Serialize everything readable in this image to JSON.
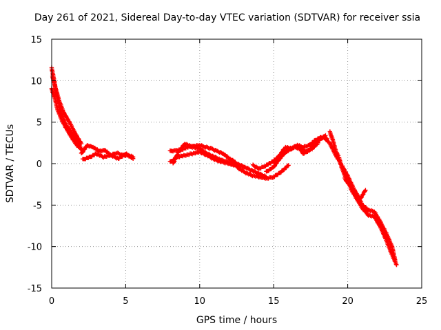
{
  "chart_data": {
    "type": "scatter",
    "title": "Day 261 of 2021, Sidereal Day-to-day VTEC variation (SDTVAR) for receiver ssia",
    "xlabel": "GPS time / hours",
    "ylabel": "SDTVAR / TECUs",
    "xlim": [
      0,
      25
    ],
    "ylim": [
      -15,
      15
    ],
    "xticks": [
      "0",
      "5",
      "10",
      "15",
      "20",
      "25"
    ],
    "yticks": [
      "-15",
      "-10",
      "-5",
      "0",
      "5",
      "10",
      "15"
    ],
    "grid": true,
    "marker": "+",
    "color": "#ff0000",
    "series": [
      {
        "name": "SDTVAR",
        "tracks": [
          {
            "x": [
              0.0,
              0.15,
              0.3,
              0.5,
              0.7,
              1.0,
              1.4,
              1.8,
              2.1
            ],
            "y": [
              11.5,
              10.2,
              8.6,
              7.0,
              5.8,
              4.6,
              3.6,
              2.4,
              1.4
            ]
          },
          {
            "x": [
              0.0,
              0.2,
              0.4,
              0.7,
              1.0,
              1.4,
              1.8
            ],
            "y": [
              9.0,
              8.0,
              6.5,
              5.2,
              4.2,
              3.0,
              2.0
            ]
          },
          {
            "x": [
              0.05,
              0.25,
              0.5,
              0.8,
              1.2,
              1.6,
              2.0
            ],
            "y": [
              10.5,
              9.2,
              7.6,
              6.2,
              5.0,
              3.6,
              2.4
            ]
          },
          {
            "x": [
              2.0,
              2.4,
              2.8,
              3.2,
              3.6,
              4.0,
              4.4,
              4.8,
              5.2,
              5.5
            ],
            "y": [
              1.2,
              2.2,
              2.0,
              1.5,
              1.6,
              1.0,
              1.3,
              1.0,
              1.0,
              0.8
            ]
          },
          {
            "x": [
              2.1,
              2.6,
              3.0,
              3.5,
              4.0,
              4.5,
              5.0,
              5.5
            ],
            "y": [
              0.5,
              0.8,
              1.2,
              0.8,
              1.0,
              0.6,
              1.2,
              0.6
            ]
          },
          {
            "x": [
              8.0,
              8.4,
              8.8,
              9.2,
              9.6,
              10.0,
              10.4,
              10.8,
              11.2,
              11.6,
              12.0,
              12.4
            ],
            "y": [
              1.5,
              1.6,
              1.7,
              2.0,
              2.1,
              2.2,
              2.0,
              1.8,
              1.5,
              1.2,
              0.6,
              0.2
            ]
          },
          {
            "x": [
              8.0,
              8.5,
              9.0,
              9.5,
              10.0,
              10.5,
              11.0,
              11.5,
              12.0,
              12.5,
              13.0
            ],
            "y": [
              0.2,
              0.8,
              1.0,
              1.2,
              1.4,
              1.0,
              0.5,
              0.2,
              0.0,
              -0.3,
              -0.4
            ]
          },
          {
            "x": [
              8.2,
              8.6,
              9.0,
              9.5,
              10.0,
              10.5,
              11.0,
              11.5,
              12.0,
              12.5,
              13.0,
              13.5,
              14.0,
              14.5
            ],
            "y": [
              0.0,
              1.5,
              2.4,
              2.0,
              1.8,
              1.2,
              0.8,
              0.4,
              0.2,
              0.0,
              -0.4,
              -0.8,
              -1.2,
              -1.6
            ]
          },
          {
            "x": [
              12.5,
              13.0,
              13.5,
              14.0,
              14.5,
              15.0,
              15.5,
              16.0
            ],
            "y": [
              -0.4,
              -1.0,
              -1.4,
              -1.6,
              -1.8,
              -1.6,
              -1.0,
              -0.2
            ]
          },
          {
            "x": [
              13.6,
              14.0,
              14.4,
              14.8,
              15.2,
              15.6,
              16.0,
              16.4,
              16.8,
              17.2,
              17.6,
              18.0
            ],
            "y": [
              -0.2,
              -0.6,
              -0.3,
              0.1,
              0.6,
              1.2,
              1.6,
              2.0,
              1.8,
              1.5,
              1.8,
              2.5
            ]
          },
          {
            "x": [
              14.5,
              15.0,
              15.4,
              15.8,
              16.2,
              16.6,
              17.0,
              17.4,
              17.8,
              18.2,
              18.6
            ],
            "y": [
              -1.0,
              -0.4,
              0.6,
              1.4,
              1.8,
              2.2,
              2.0,
              2.2,
              2.8,
              3.2,
              3.0
            ]
          },
          {
            "x": [
              15.0,
              15.4,
              15.8,
              16.2,
              16.6,
              17.0,
              17.4,
              17.8,
              18.2,
              18.5
            ],
            "y": [
              0.2,
              1.0,
              2.0,
              1.8,
              2.2,
              1.2,
              1.6,
              2.4,
              3.0,
              3.4
            ]
          },
          {
            "x": [
              18.4,
              18.8,
              19.2,
              19.6,
              20.0,
              20.4,
              20.8,
              21.2
            ],
            "y": [
              3.2,
              2.4,
              1.0,
              -0.2,
              -1.5,
              -3.0,
              -4.4,
              -3.2
            ]
          },
          {
            "x": [
              18.8,
              19.0,
              19.2,
              19.4,
              19.6,
              19.8,
              20.0
            ],
            "y": [
              3.8,
              2.8,
              1.5,
              0.8,
              -0.5,
              -1.4,
              -2.2
            ]
          },
          {
            "x": [
              19.8,
              20.2,
              20.6,
              21.0,
              21.4,
              21.8,
              22.2,
              22.6,
              23.0,
              23.2
            ],
            "y": [
              -1.8,
              -2.8,
              -3.6,
              -5.0,
              -5.6,
              -5.8,
              -7.0,
              -8.4,
              -10.0,
              -11.6
            ]
          },
          {
            "x": [
              20.2,
              20.6,
              21.0,
              21.4,
              21.8,
              22.2,
              22.6,
              23.0,
              23.3
            ],
            "y": [
              -3.0,
              -4.2,
              -5.4,
              -6.2,
              -6.4,
              -7.6,
              -9.2,
              -11.0,
              -12.2
            ]
          }
        ]
      }
    ]
  }
}
